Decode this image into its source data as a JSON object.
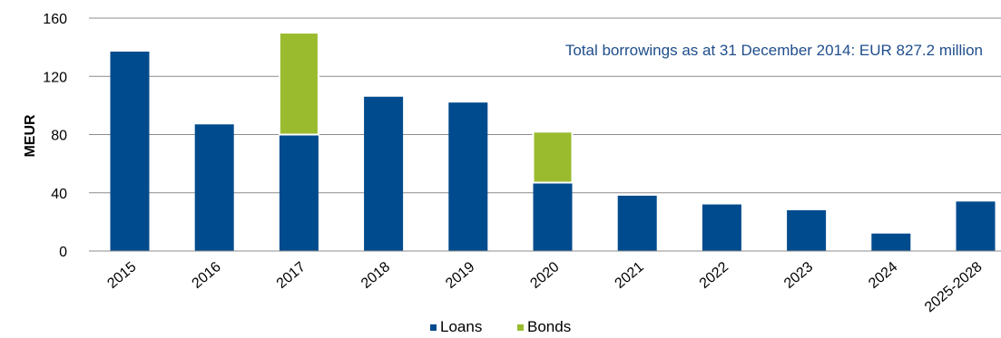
{
  "chart_data": {
    "type": "bar",
    "stacked": true,
    "categories": [
      "2015",
      "2016",
      "2017",
      "2018",
      "2019",
      "2020",
      "2021",
      "2022",
      "2023",
      "2024",
      "2025-2028"
    ],
    "series": [
      {
        "name": "Loans",
        "color": "#004b8d",
        "values": [
          137,
          87,
          80,
          106,
          102,
          47,
          38,
          32,
          28,
          12,
          34
        ]
      },
      {
        "name": "Bonds",
        "color": "#9bbb2e",
        "values": [
          0,
          0,
          70,
          0,
          0,
          35,
          0,
          0,
          0,
          0,
          0
        ]
      }
    ],
    "ylabel": "MEUR",
    "ylim": [
      0,
      160
    ],
    "yticks": [
      0,
      40,
      80,
      120,
      160
    ],
    "annotation": "Total borrowings as at 31 December 2014: EUR 827.2 million",
    "grid": true,
    "legend": "bottom-center"
  }
}
